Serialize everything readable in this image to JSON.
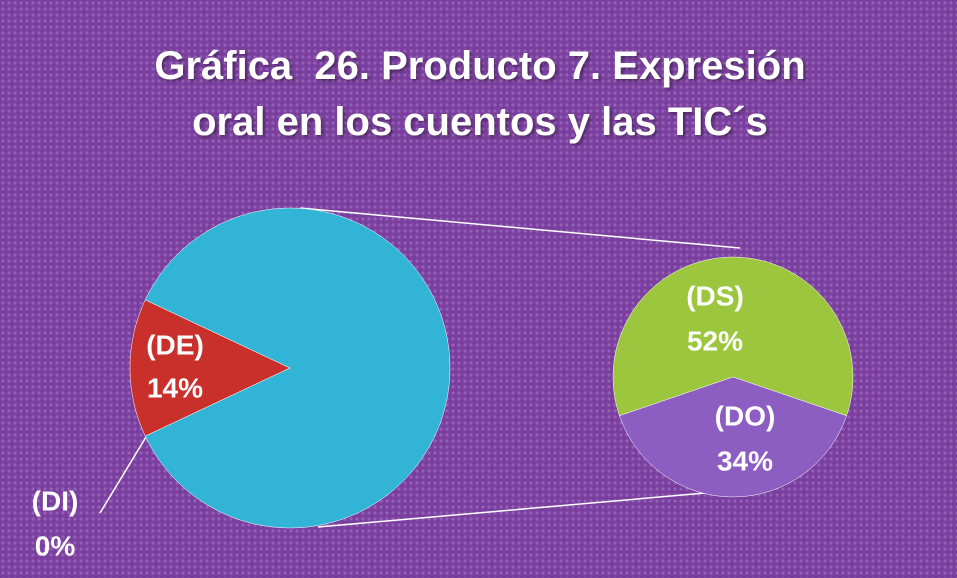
{
  "chart_data": {
    "type": "pie-of-pie",
    "title": "Gráfica  26. Producto 7. Expresión oral en los cuentos y las TIC´s",
    "main": {
      "categories": [
        "(DE)",
        "(DI)"
      ],
      "values": [
        14,
        0
      ],
      "value_labels": [
        "14%",
        "0%"
      ],
      "colors": [
        "#c9302c",
        "#c9302c"
      ]
    },
    "other_color": "#31b4d6",
    "secondary": {
      "categories": [
        "(DS)",
        "(DO)"
      ],
      "values": [
        52,
        34
      ],
      "value_labels": [
        "52%",
        "34%"
      ],
      "colors": [
        "#9cc63e",
        "#8d5ec2"
      ]
    }
  }
}
